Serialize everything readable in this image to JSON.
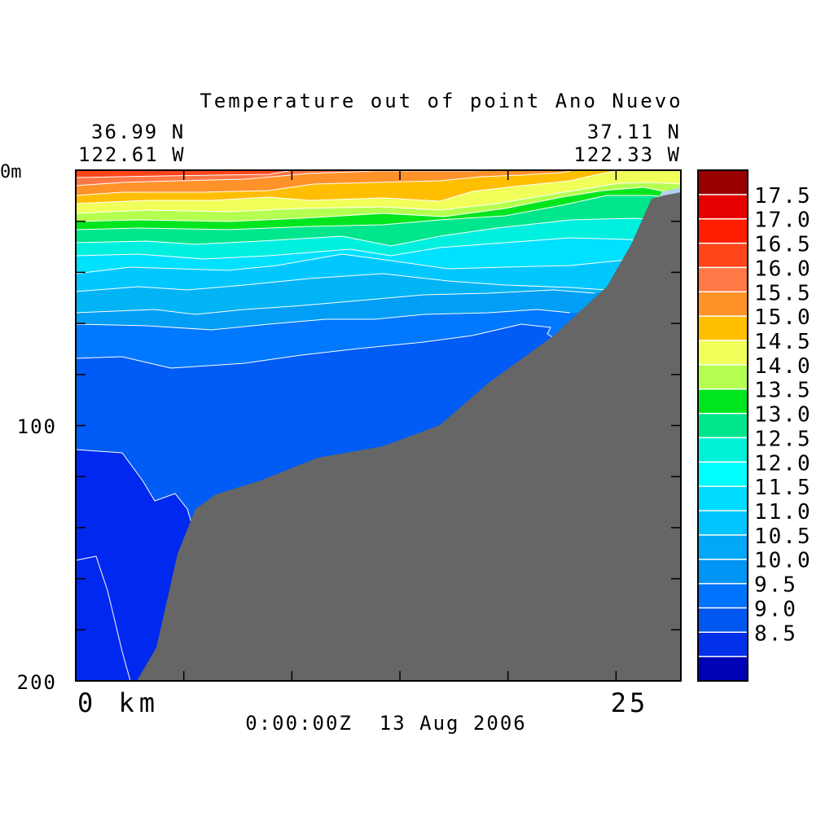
{
  "chart_data": {
    "type": "heatmap",
    "title": "Temperature out of point Ano Nuevo",
    "left_coord": {
      "lat": "36.99 N",
      "lon": "122.61 W"
    },
    "right_coord": {
      "lat": "37.11 N",
      "lon": "122.33 W"
    },
    "xlabel_start": "0 km",
    "x_tick_25": "25",
    "timestamp": "0:00:00Z  13 Aug 2006",
    "ylim": [
      200,
      0
    ],
    "xlim": [
      0,
      28
    ],
    "y_tick_labels": [
      "0m",
      "100",
      "200"
    ],
    "y_tick_values": [
      0,
      100,
      200
    ],
    "x_tick_values": [
      0,
      5,
      10,
      15,
      20,
      25
    ],
    "y_minor_ticks": [
      20,
      40,
      60,
      80,
      120,
      140,
      160,
      180
    ],
    "colorbar": {
      "labels": [
        "17.5",
        "17.0",
        "16.5",
        "16.0",
        "15.5",
        "15.0",
        "14.5",
        "14.0",
        "13.5",
        "13.0",
        "12.5",
        "12.0",
        "11.5",
        "11.0",
        "10.5",
        "10.0",
        "9.5",
        "9.0",
        "8.5"
      ],
      "colors": [
        "#0000b4",
        "#0030ea",
        "#0058f0",
        "#0074ff",
        "#0095f5",
        "#00a8f5",
        "#00c5ff",
        "#00dcff",
        "#00ffff",
        "#00f0d8",
        "#00e68c",
        "#00e61e",
        "#b4ff50",
        "#f0ff5a",
        "#ffbe00",
        "#ff9228",
        "#ff7846",
        "#ff461a",
        "#ff1e00",
        "#e60000",
        "#990000"
      ]
    },
    "layers": [
      {
        "temp_range": "below 8.5",
        "color": "#0028ee"
      },
      {
        "temp_range": "9.0-9.5",
        "color": "#005cf5"
      },
      {
        "temp_range": "9.5-10.0",
        "color": "#0078ff"
      },
      {
        "temp_range": "10.0-10.5",
        "color": "#009ef5"
      },
      {
        "temp_range": "10.5-11.0",
        "color": "#00b4f5"
      },
      {
        "temp_range": "11.0-11.5",
        "color": "#00c8ff"
      },
      {
        "temp_range": "11.5-12.0",
        "color": "#00e0ff"
      },
      {
        "temp_range": "12.0-12.5",
        "color": "#00f0e0"
      },
      {
        "temp_range": "12.5-13.0",
        "color": "#00e68c"
      },
      {
        "temp_range": "13.0-13.5",
        "color": "#00e61e"
      },
      {
        "temp_range": "13.5-14.0",
        "color": "#b4ff50"
      },
      {
        "temp_range": "14.0-14.5",
        "color": "#f0ff5a"
      },
      {
        "temp_range": "14.5-15.0",
        "color": "#ffbe00"
      },
      {
        "temp_range": "15.0-15.5",
        "color": "#ff9228"
      },
      {
        "temp_range": "15.5-16.0",
        "color": "#ff7846"
      },
      {
        "temp_range": "16.0-16.5",
        "color": "#ff461a"
      }
    ],
    "bottom_color": "#666666",
    "grid": false,
    "legend": "right"
  }
}
